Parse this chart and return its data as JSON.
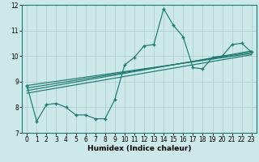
{
  "xlabel": "Humidex (Indice chaleur)",
  "ylabel": "",
  "xlim": [
    -0.5,
    23.5
  ],
  "ylim": [
    7,
    12
  ],
  "yticks": [
    7,
    8,
    9,
    10,
    11,
    12
  ],
  "xticks": [
    0,
    1,
    2,
    3,
    4,
    5,
    6,
    7,
    8,
    9,
    10,
    11,
    12,
    13,
    14,
    15,
    16,
    17,
    18,
    19,
    20,
    21,
    22,
    23
  ],
  "bg_color": "#cce8e8",
  "line_color": "#1e7a6e",
  "series": [
    [
      0,
      8.85
    ],
    [
      1,
      7.45
    ],
    [
      2,
      8.1
    ],
    [
      3,
      8.15
    ],
    [
      4,
      8.0
    ],
    [
      5,
      7.7
    ],
    [
      6,
      7.7
    ],
    [
      7,
      7.55
    ],
    [
      8,
      7.55
    ],
    [
      9,
      8.3
    ],
    [
      10,
      9.65
    ],
    [
      11,
      9.95
    ],
    [
      12,
      10.4
    ],
    [
      13,
      10.45
    ],
    [
      14,
      11.85
    ],
    [
      15,
      11.2
    ],
    [
      16,
      10.75
    ],
    [
      17,
      9.55
    ],
    [
      18,
      9.5
    ],
    [
      19,
      9.95
    ],
    [
      20,
      10.0
    ],
    [
      21,
      10.45
    ],
    [
      22,
      10.5
    ],
    [
      23,
      10.15
    ]
  ],
  "trend_lines": [
    {
      "x": [
        0,
        23
      ],
      "y": [
        8.85,
        10.1
      ]
    },
    {
      "x": [
        0,
        23
      ],
      "y": [
        8.75,
        10.15
      ]
    },
    {
      "x": [
        0,
        23
      ],
      "y": [
        8.65,
        10.2
      ]
    },
    {
      "x": [
        0,
        23
      ],
      "y": [
        8.55,
        10.05
      ]
    }
  ],
  "grid_color": "#b0d0d0",
  "xlabel_fontsize": 6.5,
  "tick_fontsize": 5.5
}
